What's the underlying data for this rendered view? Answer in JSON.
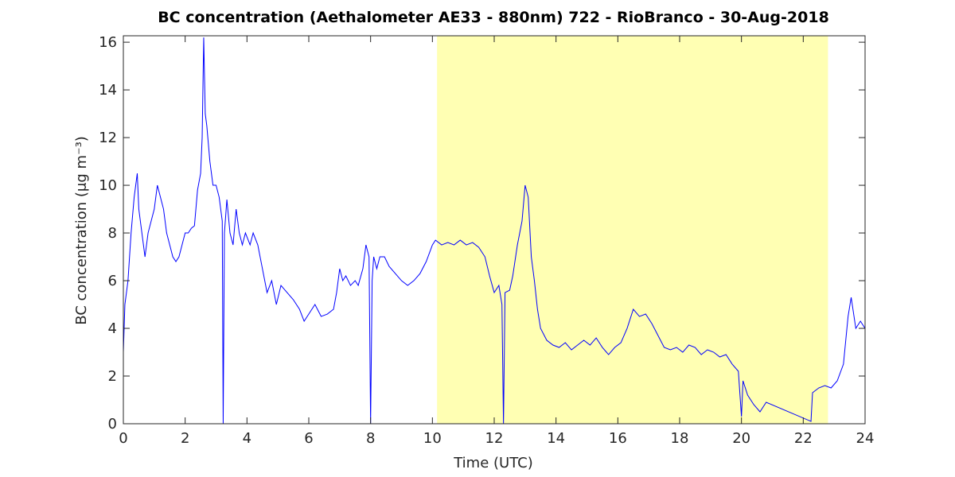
{
  "chart_data": {
    "type": "line",
    "title": "BC concentration (Aethalometer AE33 - 880nm) 722 - RioBranco - 30-Aug-2018",
    "x_label": "Time (UTC)",
    "y_label": "BC concentration (μg m⁻³)",
    "xlim": [
      0,
      24
    ],
    "ylim": [
      0,
      16.27
    ],
    "xticks": [
      0,
      2,
      4,
      6,
      8,
      10,
      12,
      14,
      16,
      18,
      20,
      22,
      24
    ],
    "yticks": [
      0,
      2,
      4,
      6,
      8,
      10,
      12,
      14,
      16
    ],
    "shaded_span": [
      10.15,
      22.8
    ],
    "shade_color": "#ffffb3",
    "series": [
      {
        "color": "#0000ff",
        "x": [
          0,
          0.05,
          0.15,
          0.25,
          0.35,
          0.45,
          0.5,
          0.6,
          0.7,
          0.8,
          0.9,
          1.0,
          1.1,
          1.2,
          1.3,
          1.4,
          1.5,
          1.6,
          1.7,
          1.8,
          1.9,
          2.0,
          2.1,
          2.2,
          2.3,
          2.4,
          2.5,
          2.55,
          2.6,
          2.65,
          2.7,
          2.8,
          2.9,
          3.0,
          3.1,
          3.2,
          3.23,
          3.27,
          3.35,
          3.45,
          3.55,
          3.65,
          3.75,
          3.85,
          3.95,
          4.1,
          4.2,
          4.35,
          4.5,
          4.65,
          4.8,
          4.95,
          5.1,
          5.3,
          5.5,
          5.7,
          5.85,
          6.0,
          6.2,
          6.4,
          6.6,
          6.8,
          6.9,
          7.0,
          7.1,
          7.2,
          7.35,
          7.5,
          7.6,
          7.75,
          7.85,
          7.95,
          8.0,
          8.05,
          8.1,
          8.2,
          8.3,
          8.45,
          8.6,
          8.8,
          9.0,
          9.2,
          9.4,
          9.6,
          9.8,
          10.0,
          10.1,
          10.3,
          10.5,
          10.7,
          10.9,
          11.1,
          11.3,
          11.5,
          11.7,
          11.85,
          12.0,
          12.15,
          12.25,
          12.3,
          12.35,
          12.5,
          12.6,
          12.75,
          12.9,
          13.0,
          13.1,
          13.2,
          13.3,
          13.4,
          13.5,
          13.7,
          13.9,
          14.1,
          14.3,
          14.5,
          14.7,
          14.9,
          15.1,
          15.3,
          15.5,
          15.7,
          15.9,
          16.1,
          16.3,
          16.5,
          16.7,
          16.9,
          17.1,
          17.3,
          17.5,
          17.7,
          17.9,
          18.1,
          18.3,
          18.5,
          18.7,
          18.9,
          19.1,
          19.3,
          19.5,
          19.7,
          19.9,
          20.0,
          20.05,
          20.2,
          20.4,
          20.6,
          20.8,
          22.25,
          22.3,
          22.5,
          22.7,
          22.9,
          23.1,
          23.3,
          23.45,
          23.55,
          23.7,
          23.85,
          24
        ],
        "values": [
          3,
          5,
          6,
          8,
          9.5,
          10.5,
          9,
          8,
          7,
          8,
          8.5,
          9,
          10,
          9.5,
          9,
          8,
          7.5,
          7,
          6.8,
          7,
          7.5,
          8,
          8,
          8.2,
          8.3,
          9.8,
          10.5,
          12,
          16.2,
          13,
          12.5,
          11,
          10,
          10,
          9.5,
          8.5,
          0,
          8,
          9.4,
          8,
          7.5,
          9,
          8,
          7.5,
          8,
          7.5,
          8,
          7.5,
          6.5,
          5.5,
          6,
          5,
          5.8,
          5.5,
          5.2,
          4.8,
          4.3,
          4.6,
          5,
          4.5,
          4.6,
          4.8,
          5.5,
          6.5,
          6,
          6.2,
          5.8,
          6,
          5.8,
          6.5,
          7.5,
          7,
          0,
          6,
          7,
          6.5,
          7,
          7,
          6.6,
          6.3,
          6,
          5.8,
          6,
          6.3,
          6.8,
          7.5,
          7.7,
          7.5,
          7.6,
          7.5,
          7.7,
          7.5,
          7.6,
          7.4,
          7,
          6.2,
          5.5,
          5.8,
          5,
          0,
          5.5,
          5.6,
          6.2,
          7.5,
          8.5,
          10,
          9.5,
          7,
          6,
          4.8,
          4,
          3.5,
          3.3,
          3.2,
          3.4,
          3.1,
          3.3,
          3.5,
          3.3,
          3.6,
          3.2,
          2.9,
          3.2,
          3.4,
          4,
          4.8,
          4.5,
          4.6,
          4.2,
          3.7,
          3.2,
          3.1,
          3.2,
          3.0,
          3.3,
          3.2,
          2.9,
          3.1,
          3.0,
          2.8,
          2.9,
          2.5,
          2.2,
          0.3,
          1.8,
          1.2,
          0.8,
          0.5,
          0.9,
          0.1,
          1.3,
          1.5,
          1.6,
          1.5,
          1.8,
          2.5,
          4.5,
          5.3,
          4,
          4.3,
          4
        ]
      }
    ]
  }
}
